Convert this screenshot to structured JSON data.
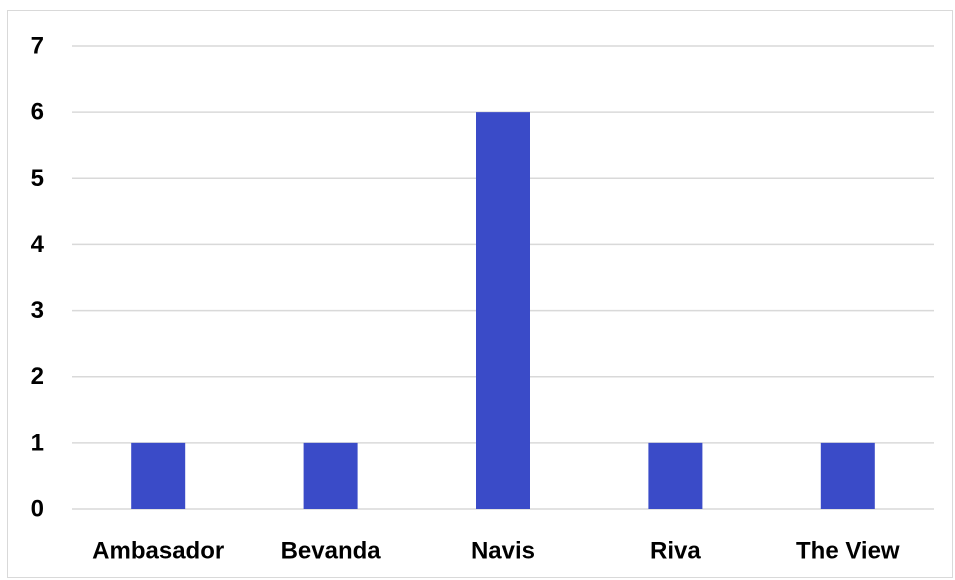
{
  "chart_data": {
    "type": "bar",
    "title": "",
    "xlabel": "",
    "ylabel": "",
    "categories": [
      "Ambasador",
      "Bevanda",
      "Navis",
      "Riva",
      "The View"
    ],
    "values": [
      1,
      1,
      6,
      1,
      1
    ],
    "ylim": [
      0,
      7
    ],
    "yticks": [
      "0",
      "1",
      "2",
      "3",
      "4",
      "5",
      "6",
      "7"
    ],
    "grid": true,
    "legend": "none",
    "bar_color": "#3A4BC8",
    "grid_color": "#D9D9D9"
  }
}
